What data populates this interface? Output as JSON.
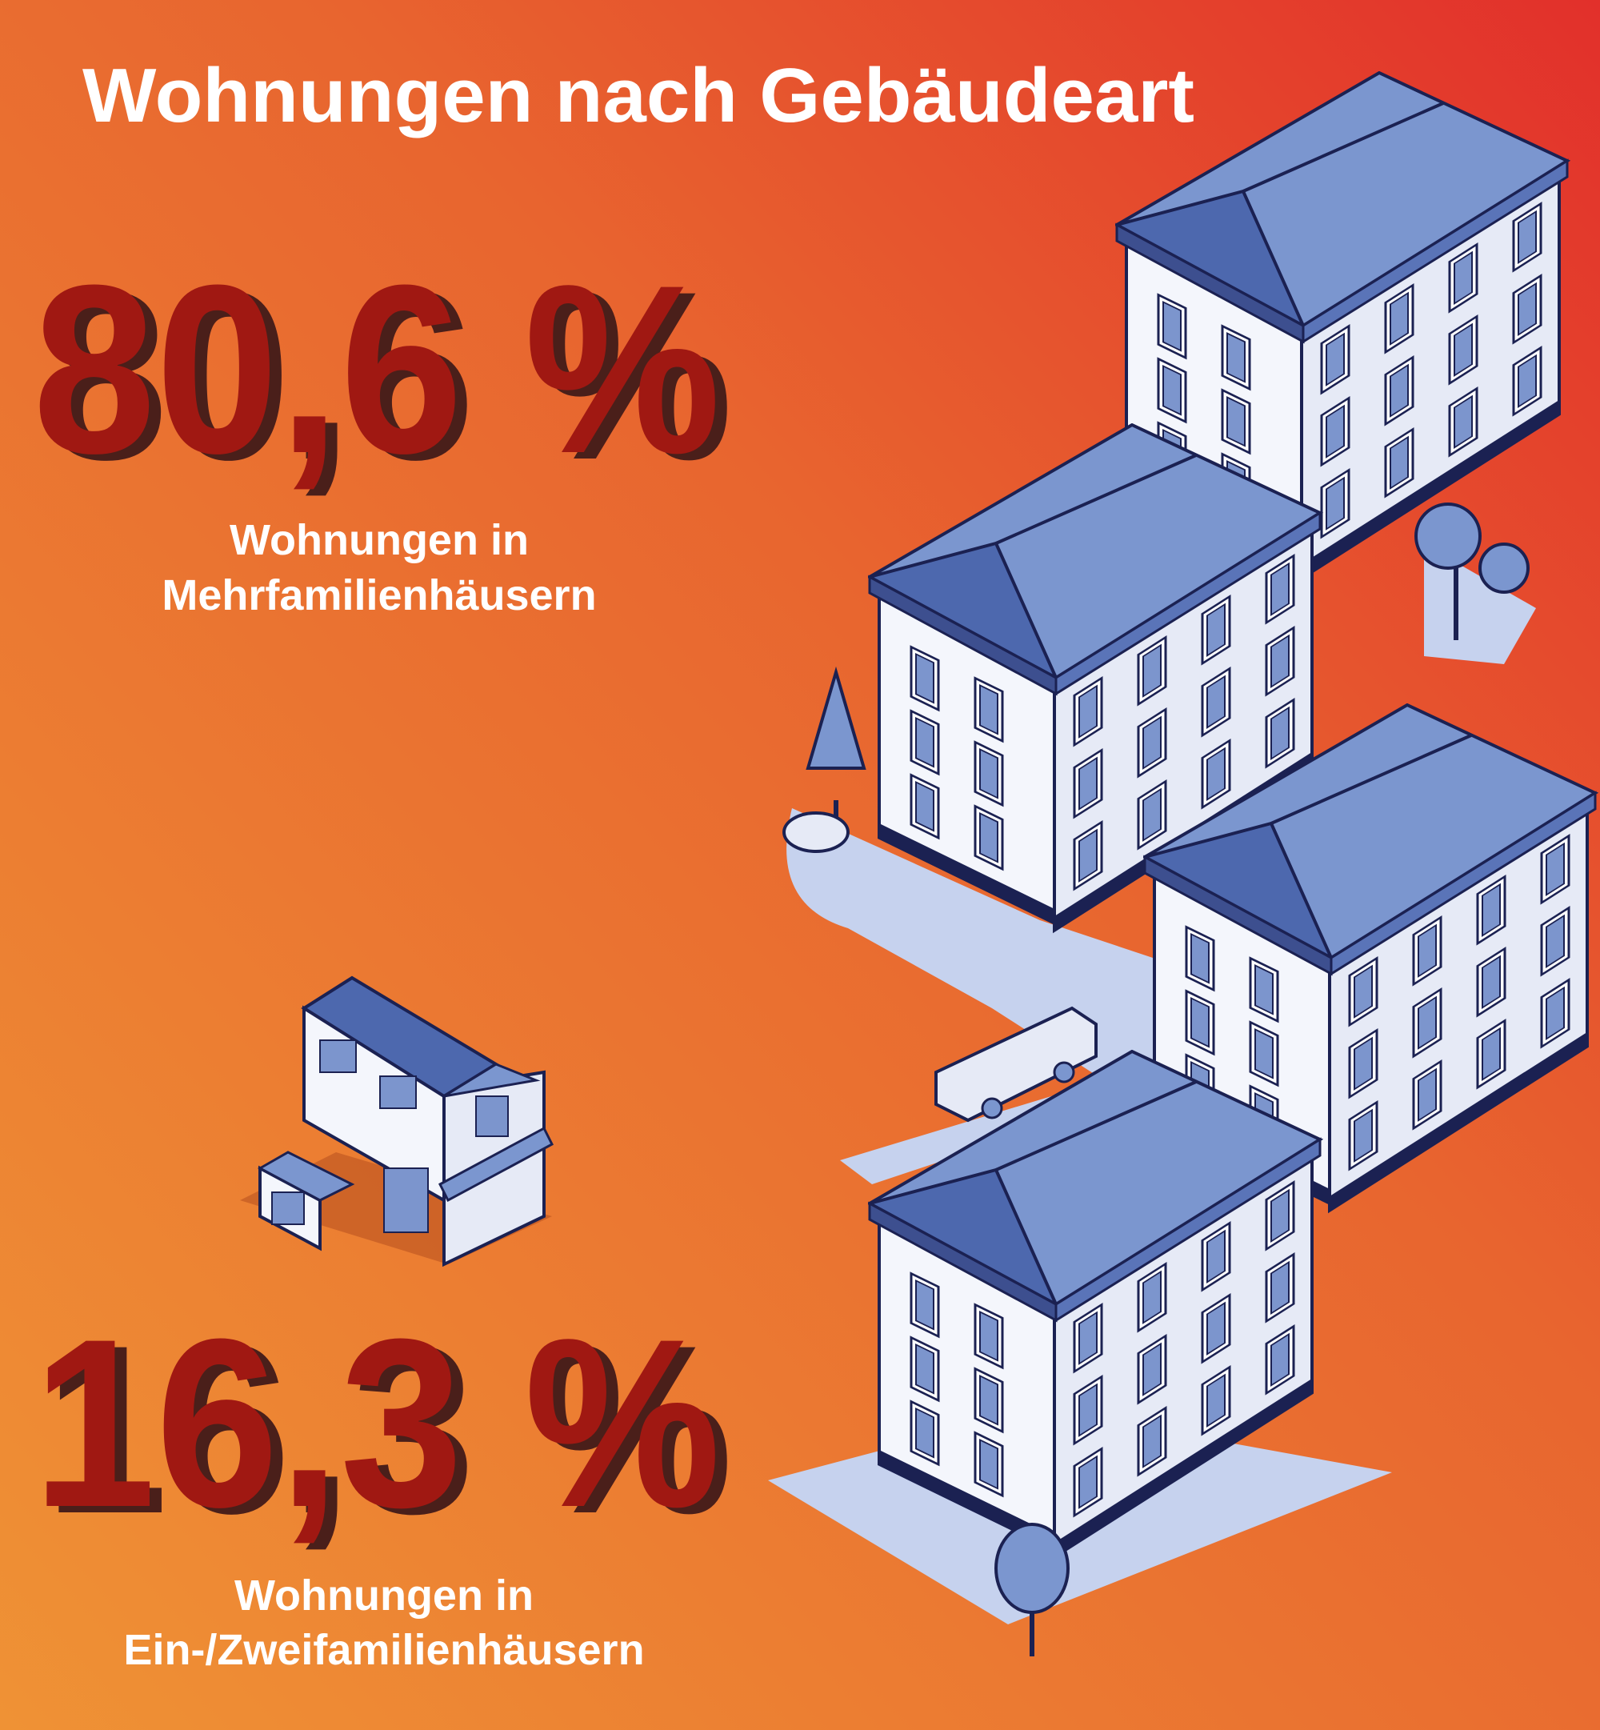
{
  "title": "Wohnungen nach Gebäudeart",
  "stats": [
    {
      "value": "80,6 %",
      "label": [
        "Wohnungen in",
        "Mehrfamilienhäusern"
      ]
    },
    {
      "value": "16,3 %",
      "label": [
        "Wohnungen in",
        "Ein-/Zweifamilienhäusern"
      ]
    }
  ]
}
